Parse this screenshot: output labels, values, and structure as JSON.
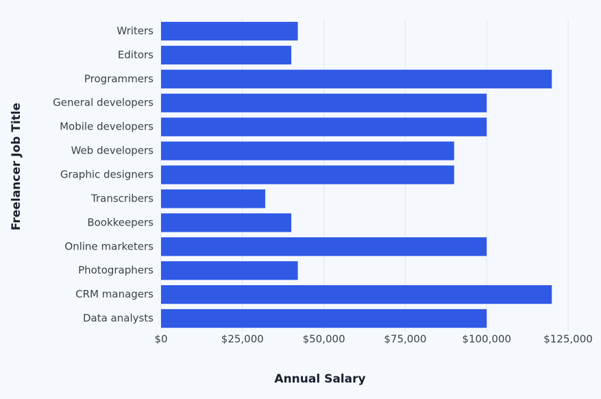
{
  "chart_data": {
    "type": "barh",
    "x_label": "Annual Salary",
    "y_label": "Freelancer Job Title",
    "categories": [
      "Writers",
      "Editors",
      "Programmers",
      "General developers",
      "Mobile developers",
      "Web developers",
      "Graphic designers",
      "Transcribers",
      "Bookkeepers",
      "Online marketers",
      "Photographers",
      "CRM managers",
      "Data analysts"
    ],
    "values": [
      42000,
      40000,
      120000,
      100000,
      100000,
      90000,
      90000,
      32000,
      40000,
      100000,
      42000,
      120000,
      100000
    ],
    "color": "#3059e6",
    "xlim": [
      0,
      125000
    ],
    "xticks": [
      {
        "value": 0,
        "label": "$0"
      },
      {
        "value": 25000,
        "label": "$25,000"
      },
      {
        "value": 50000,
        "label": "$50,000"
      },
      {
        "value": 75000,
        "label": "$75,000"
      },
      {
        "value": 100000,
        "label": "$100,000"
      },
      {
        "value": 125000,
        "label": "$125,000"
      }
    ],
    "grid": true
  }
}
